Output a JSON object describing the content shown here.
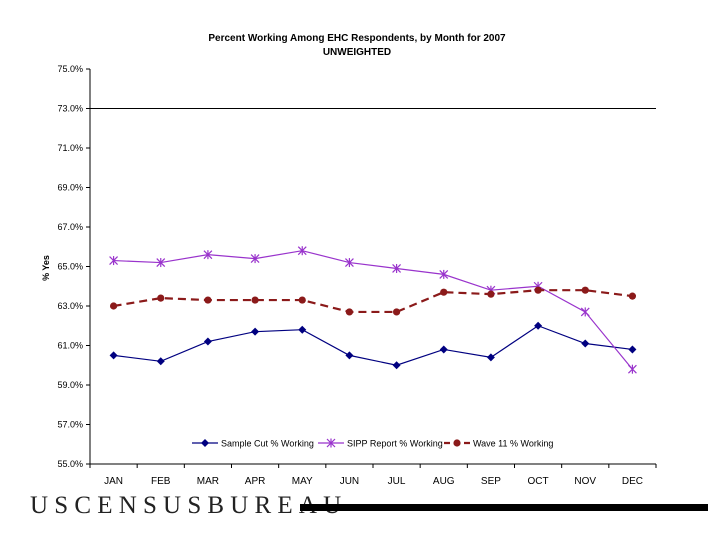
{
  "chart_data": {
    "type": "line",
    "title": "Percent Working Among EHC Respondents, by Month for 2007",
    "subtitle": "UNWEIGHTED",
    "xlabel": "",
    "ylabel": "% Yes",
    "ylim": [
      55.0,
      75.0
    ],
    "yticks": [
      "55.0%",
      "57.0%",
      "59.0%",
      "61.0%",
      "63.0%",
      "65.0%",
      "67.0%",
      "69.0%",
      "71.0%",
      "73.0%",
      "75.0%"
    ],
    "reference_line": 73.0,
    "grid": false,
    "legend_position": "bottom-inside",
    "categories": [
      "JAN",
      "FEB",
      "MAR",
      "APR",
      "MAY",
      "JUN",
      "JUL",
      "AUG",
      "SEP",
      "OCT",
      "NOV",
      "DEC"
    ],
    "series": [
      {
        "name": "Sample Cut % Working",
        "color": "#000080",
        "marker": "diamond",
        "dashed": false,
        "values": [
          60.5,
          60.2,
          61.2,
          61.7,
          61.8,
          60.5,
          60.0,
          60.8,
          60.4,
          62.0,
          61.1,
          60.8
        ]
      },
      {
        "name": "SIPP Report % Working",
        "color": "#9933cc",
        "marker": "star",
        "dashed": false,
        "values": [
          65.3,
          65.2,
          65.6,
          65.4,
          65.8,
          65.2,
          64.9,
          64.6,
          63.8,
          64.0,
          62.7,
          59.8
        ]
      },
      {
        "name": "Wave 11 % Working",
        "color": "#8b1a1a",
        "marker": "circle",
        "dashed": true,
        "values": [
          63.0,
          63.4,
          63.3,
          63.3,
          63.3,
          62.7,
          62.7,
          63.7,
          63.6,
          63.8,
          63.8,
          63.5
        ]
      }
    ]
  },
  "footer": {
    "logo_text": "USCENSUSBUREAU"
  }
}
